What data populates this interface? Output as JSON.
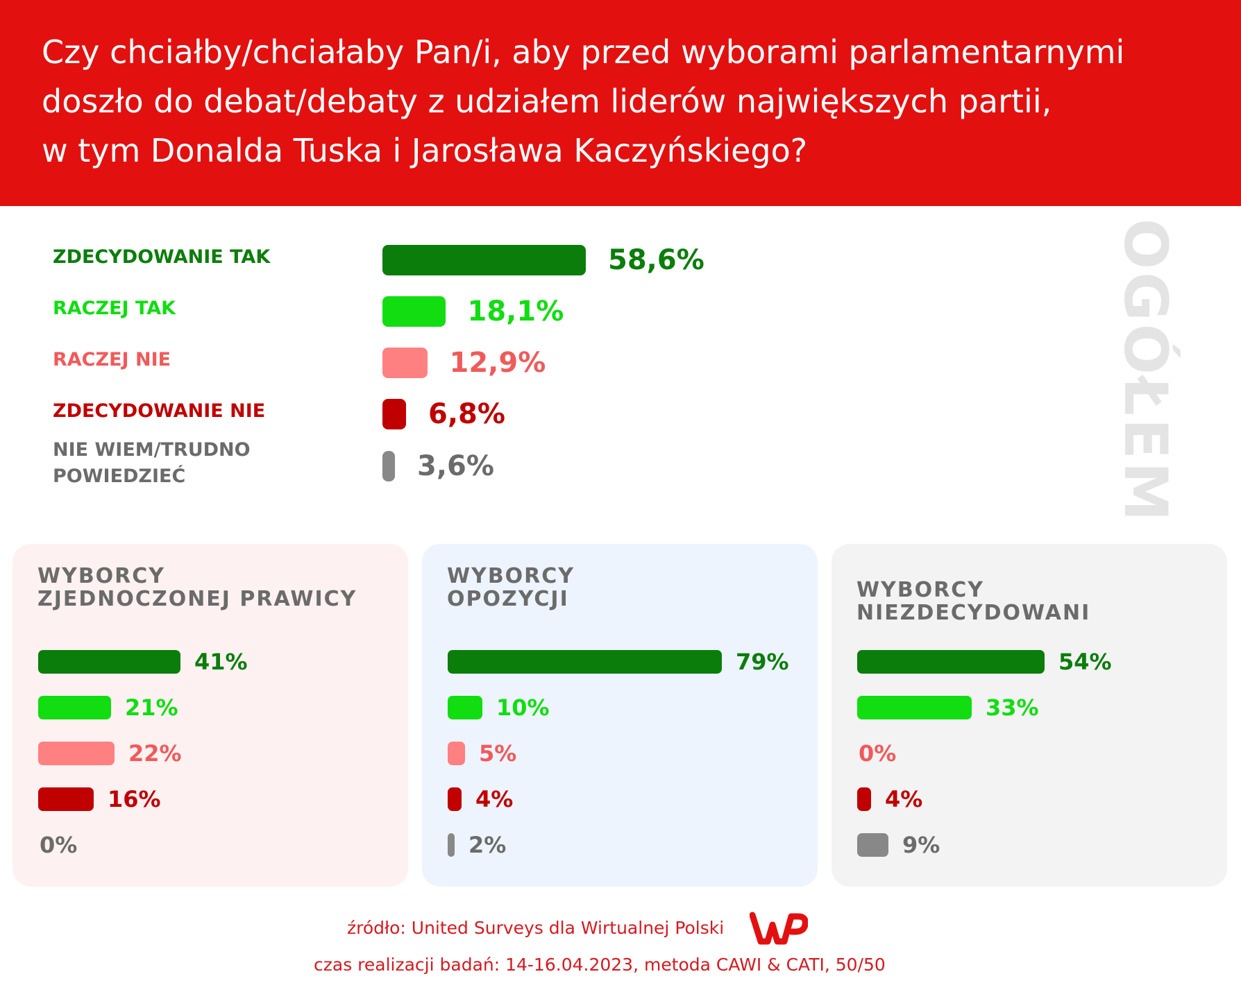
{
  "title_lines": [
    "Czy chciałby/chciałaby Pan/i, aby przed wyborami parlamentarnymi",
    "doszło do debat/debaty z udziałem liderów największych partii,",
    "w tym Donalda Tuska i Jarosława Kaczyńskiego?"
  ],
  "side_label": "OGÓŁEM",
  "colors": {
    "header": "#e31010",
    "zdecydowanie_tak": "#0b7d0b",
    "raczej_tak": "#11dd11",
    "raczej_nie": "#ff8080",
    "zdecydowanie_nie": "#c00000",
    "nie_wiem": "#888888",
    "label_raczej_nie": "#f05a5a",
    "panel_pink": "#fdf1f1",
    "panel_blue": "#edf4fd",
    "panel_gray": "#f3f3f3"
  },
  "chart_data": [
    {
      "type": "bar",
      "orientation": "horizontal",
      "title": "OGÓŁEM",
      "categories": [
        "ZDECYDOWANIE TAK",
        "RACZEJ TAK",
        "RACZEJ NIE",
        "ZDECYDOWANIE NIE",
        "NIE WIEM/TRUDNO POWIEDZIEĆ"
      ],
      "category_lines": [
        [
          "ZDECYDOWANIE TAK"
        ],
        [
          "RACZEJ TAK"
        ],
        [
          "RACZEJ NIE"
        ],
        [
          "ZDECYDOWANIE NIE"
        ],
        [
          "NIE WIEM/TRUDNO",
          "POWIEDZIEĆ"
        ]
      ],
      "values": [
        58.6,
        18.1,
        12.9,
        6.8,
        3.6
      ],
      "value_labels": [
        "58,6%",
        "18,1%",
        "12,9%",
        "6,8%",
        "3,6%"
      ]
    },
    {
      "type": "bar",
      "orientation": "horizontal",
      "title_lines": [
        "WYBORCY",
        "ZJEDNOCZONEJ PRAWICY"
      ],
      "values": [
        41,
        21,
        22,
        16,
        0
      ],
      "value_labels": [
        "41%",
        "21%",
        "22%",
        "16%",
        "0%"
      ]
    },
    {
      "type": "bar",
      "orientation": "horizontal",
      "title_lines": [
        "WYBORCY",
        "OPOZYCJI"
      ],
      "values": [
        79,
        10,
        5,
        4,
        2
      ],
      "value_labels": [
        "79%",
        "10%",
        "5%",
        "4%",
        "2%"
      ]
    },
    {
      "type": "bar",
      "orientation": "horizontal",
      "title_lines": [
        "WYBORCY",
        "NIEZDECYDOWANI"
      ],
      "values": [
        54,
        33,
        0,
        4,
        9
      ],
      "value_labels": [
        "54%",
        "33%",
        "0%",
        "4%",
        "9%"
      ]
    }
  ],
  "footer": {
    "source": "źródło: United Surveys dla Wirtualnej Polski",
    "method": "czas realizacji badań: 14-16.04.2023, metoda CAWI & CATI, 50/50",
    "logo_name": "wp-logo"
  }
}
